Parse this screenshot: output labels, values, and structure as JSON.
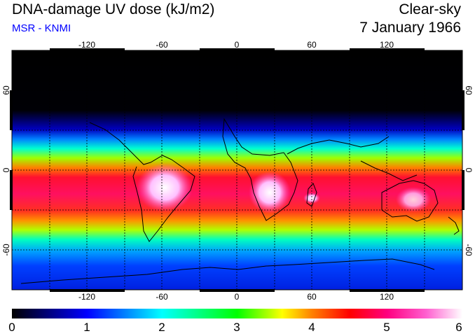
{
  "header": {
    "title": "DNA-damage UV dose (kJ/m2)",
    "credit": "MSR - KNMI",
    "sky": "Clear-sky",
    "date": "7 January 1966"
  },
  "map": {
    "lon_ticks": [
      "-120",
      "-60",
      "0",
      "60",
      "120"
    ],
    "lat_ticks": [
      "60",
      "0",
      "-60"
    ]
  },
  "colorbar": {
    "labels": [
      "0",
      "1",
      "2",
      "3",
      "4",
      "5",
      "6"
    ],
    "colors": [
      "#000000",
      "#0000ff",
      "#00ffff",
      "#00ff00",
      "#ffff00",
      "#ff0000",
      "#ff00a0",
      "#ffffff"
    ]
  }
}
